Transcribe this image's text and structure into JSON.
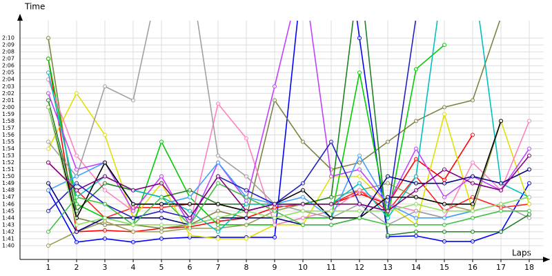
{
  "chart_data": {
    "type": "line",
    "y_label": "Time",
    "x_label": "Laps",
    "x": [
      1,
      2,
      3,
      4,
      5,
      6,
      7,
      8,
      9,
      10,
      11,
      12,
      13,
      14,
      15,
      16,
      17,
      18
    ],
    "xlim": [
      0,
      18.5
    ],
    "xticks": [
      1,
      2,
      3,
      4,
      5,
      6,
      7,
      8,
      9,
      10,
      11,
      12,
      13,
      14,
      15,
      16,
      17,
      18
    ],
    "ylim": [
      98,
      132.5
    ],
    "yticks": [
      {
        "value": 100,
        "label": "1:40"
      },
      {
        "value": 101,
        "label": "1:41"
      },
      {
        "value": 102,
        "label": "1:42"
      },
      {
        "value": 103,
        "label": "1:43"
      },
      {
        "value": 104,
        "label": "1:44"
      },
      {
        "value": 105,
        "label": "1:45"
      },
      {
        "value": 106,
        "label": "1:46"
      },
      {
        "value": 107,
        "label": "1:47"
      },
      {
        "value": 108,
        "label": "1:48"
      },
      {
        "value": 109,
        "label": "1:49"
      },
      {
        "value": 110,
        "label": "1:50"
      },
      {
        "value": 111,
        "label": "1:51"
      },
      {
        "value": 112,
        "label": "1:52"
      },
      {
        "value": 113,
        "label": "1:53"
      },
      {
        "value": 114,
        "label": "1:54"
      },
      {
        "value": 115,
        "label": "1:55"
      },
      {
        "value": 116,
        "label": "1:56"
      },
      {
        "value": 117,
        "label": "1:57"
      },
      {
        "value": 118,
        "label": "1:58"
      },
      {
        "value": 119,
        "label": "1:59"
      },
      {
        "value": 120,
        "label": "2:00"
      },
      {
        "value": 121,
        "label": "2:01"
      },
      {
        "value": 122,
        "label": "2:02"
      },
      {
        "value": 123,
        "label": "2:03"
      },
      {
        "value": 124,
        "label": "2:04"
      },
      {
        "value": 125,
        "label": "2:05"
      },
      {
        "value": 126,
        "label": "2:06"
      },
      {
        "value": 127,
        "label": "2:07"
      },
      {
        "value": 128,
        "label": "2:08"
      },
      {
        "value": 129,
        "label": "2:09"
      },
      {
        "value": 130,
        "label": "2:10"
      }
    ],
    "grid": true,
    "series": [
      {
        "color": "#0000ff",
        "values": [
          108,
          100.5,
          101,
          100.5,
          101,
          101.2,
          101.2,
          101.2,
          101.2,
          140,
          160,
          130,
          101.3,
          101.4,
          100.6,
          100.6,
          102,
          109
        ]
      },
      {
        "color": "#ff0000",
        "values": [
          127,
          102,
          102.2,
          102,
          102.5,
          102.7,
          103.5,
          104,
          105.5,
          106,
          106,
          107.5,
          106,
          112.5,
          109.5,
          116,
          null,
          null
        ]
      },
      {
        "color": "#ff2020",
        "values": [
          112,
          108,
          104,
          105.5,
          105.5,
          106,
          106,
          105,
          106,
          106,
          106,
          108,
          105,
          110,
          105,
          107,
          105.5,
          106
        ]
      },
      {
        "color": "#e0e000",
        "values": [
          114,
          122,
          116,
          104,
          109,
          101.5,
          101,
          101,
          103,
          103,
          110,
          110,
          106,
          103,
          119,
          105,
          118,
          106
        ]
      },
      {
        "color": "#00cc00",
        "values": [
          127,
          106,
          104,
          103,
          115,
          107,
          103,
          103,
          103,
          104,
          104,
          125,
          104,
          125.5,
          129,
          null,
          null,
          null
        ]
      },
      {
        "color": "#808040",
        "values": [
          130,
          104,
          103,
          103,
          102.5,
          103,
          105,
          104,
          121,
          115,
          111,
          112,
          115,
          118,
          120,
          121,
          133,
          null
        ]
      },
      {
        "color": "#9a9a50",
        "values": [
          100,
          102,
          103.5,
          102,
          102,
          102.5,
          102.5,
          103,
          105,
          106,
          107,
          108,
          109,
          107,
          106,
          105,
          118,
          null
        ]
      },
      {
        "color": "#ff80c0",
        "values": [
          124,
          113,
          108,
          105,
          110,
          103,
          120.5,
          115.5,
          103,
          104,
          105,
          108,
          106,
          105,
          104,
          112,
          108,
          118
        ]
      },
      {
        "color": "#c040ff",
        "values": [
          122,
          111,
          112,
          105,
          110,
          103,
          112,
          106.5,
          123,
          140,
          110,
          111,
          106,
          114,
          107,
          110,
          108,
          114
        ]
      },
      {
        "color": "#a0a0a0",
        "values": [
          115,
          110,
          123,
          121,
          140,
          140,
          113,
          110,
          106,
          105,
          104,
          106,
          103,
          105,
          104,
          105,
          106,
          104
        ]
      },
      {
        "color": "#208020",
        "values": [
          121,
          105,
          109,
          108,
          107,
          108,
          106,
          106,
          106,
          106,
          107,
          140,
          101.5,
          102,
          102,
          102,
          102,
          104.5
        ]
      },
      {
        "color": "#00c0c0",
        "values": [
          125,
          107,
          110,
          108,
          107,
          105,
          102,
          106,
          106,
          106,
          106,
          109,
          104,
          110,
          140,
          140,
          109,
          107
        ]
      },
      {
        "color": "#40a0ff",
        "values": [
          108,
          110,
          112,
          106,
          106,
          107,
          112,
          107,
          106,
          107,
          104,
          113,
          106,
          104,
          104,
          105,
          106,
          107
        ]
      },
      {
        "color": "#000080",
        "values": [
          109,
          102,
          104,
          104,
          104,
          103,
          104,
          104,
          104,
          103,
          103,
          104,
          110,
          109,
          109,
          110,
          109,
          111
        ]
      },
      {
        "color": "#000000",
        "values": [
          120,
          104,
          112,
          106,
          106,
          106,
          106,
          105,
          106,
          108,
          104,
          104,
          107,
          107,
          106,
          106,
          118,
          null
        ]
      },
      {
        "color": "#2020c0",
        "values": [
          105,
          109,
          106,
          104,
          105,
          104,
          110,
          108,
          106,
          109,
          115,
          106,
          105,
          133,
          null,
          null,
          null,
          null
        ]
      },
      {
        "color": "#40c040",
        "values": [
          102,
          107,
          106,
          103,
          107,
          103,
          109,
          107,
          105,
          103,
          103,
          104,
          103,
          103,
          103,
          104,
          105,
          105
        ]
      },
      {
        "color": "#90e060",
        "values": [
          120,
          103,
          104,
          103,
          103,
          103,
          104,
          105,
          104,
          105,
          105,
          105,
          105,
          106,
          105,
          105,
          106,
          107
        ]
      },
      {
        "color": "#800080",
        "values": [
          112,
          108,
          110,
          108,
          109,
          104,
          110,
          105,
          106,
          106,
          106,
          106,
          105,
          108,
          111,
          109,
          108,
          113
        ]
      }
    ]
  }
}
